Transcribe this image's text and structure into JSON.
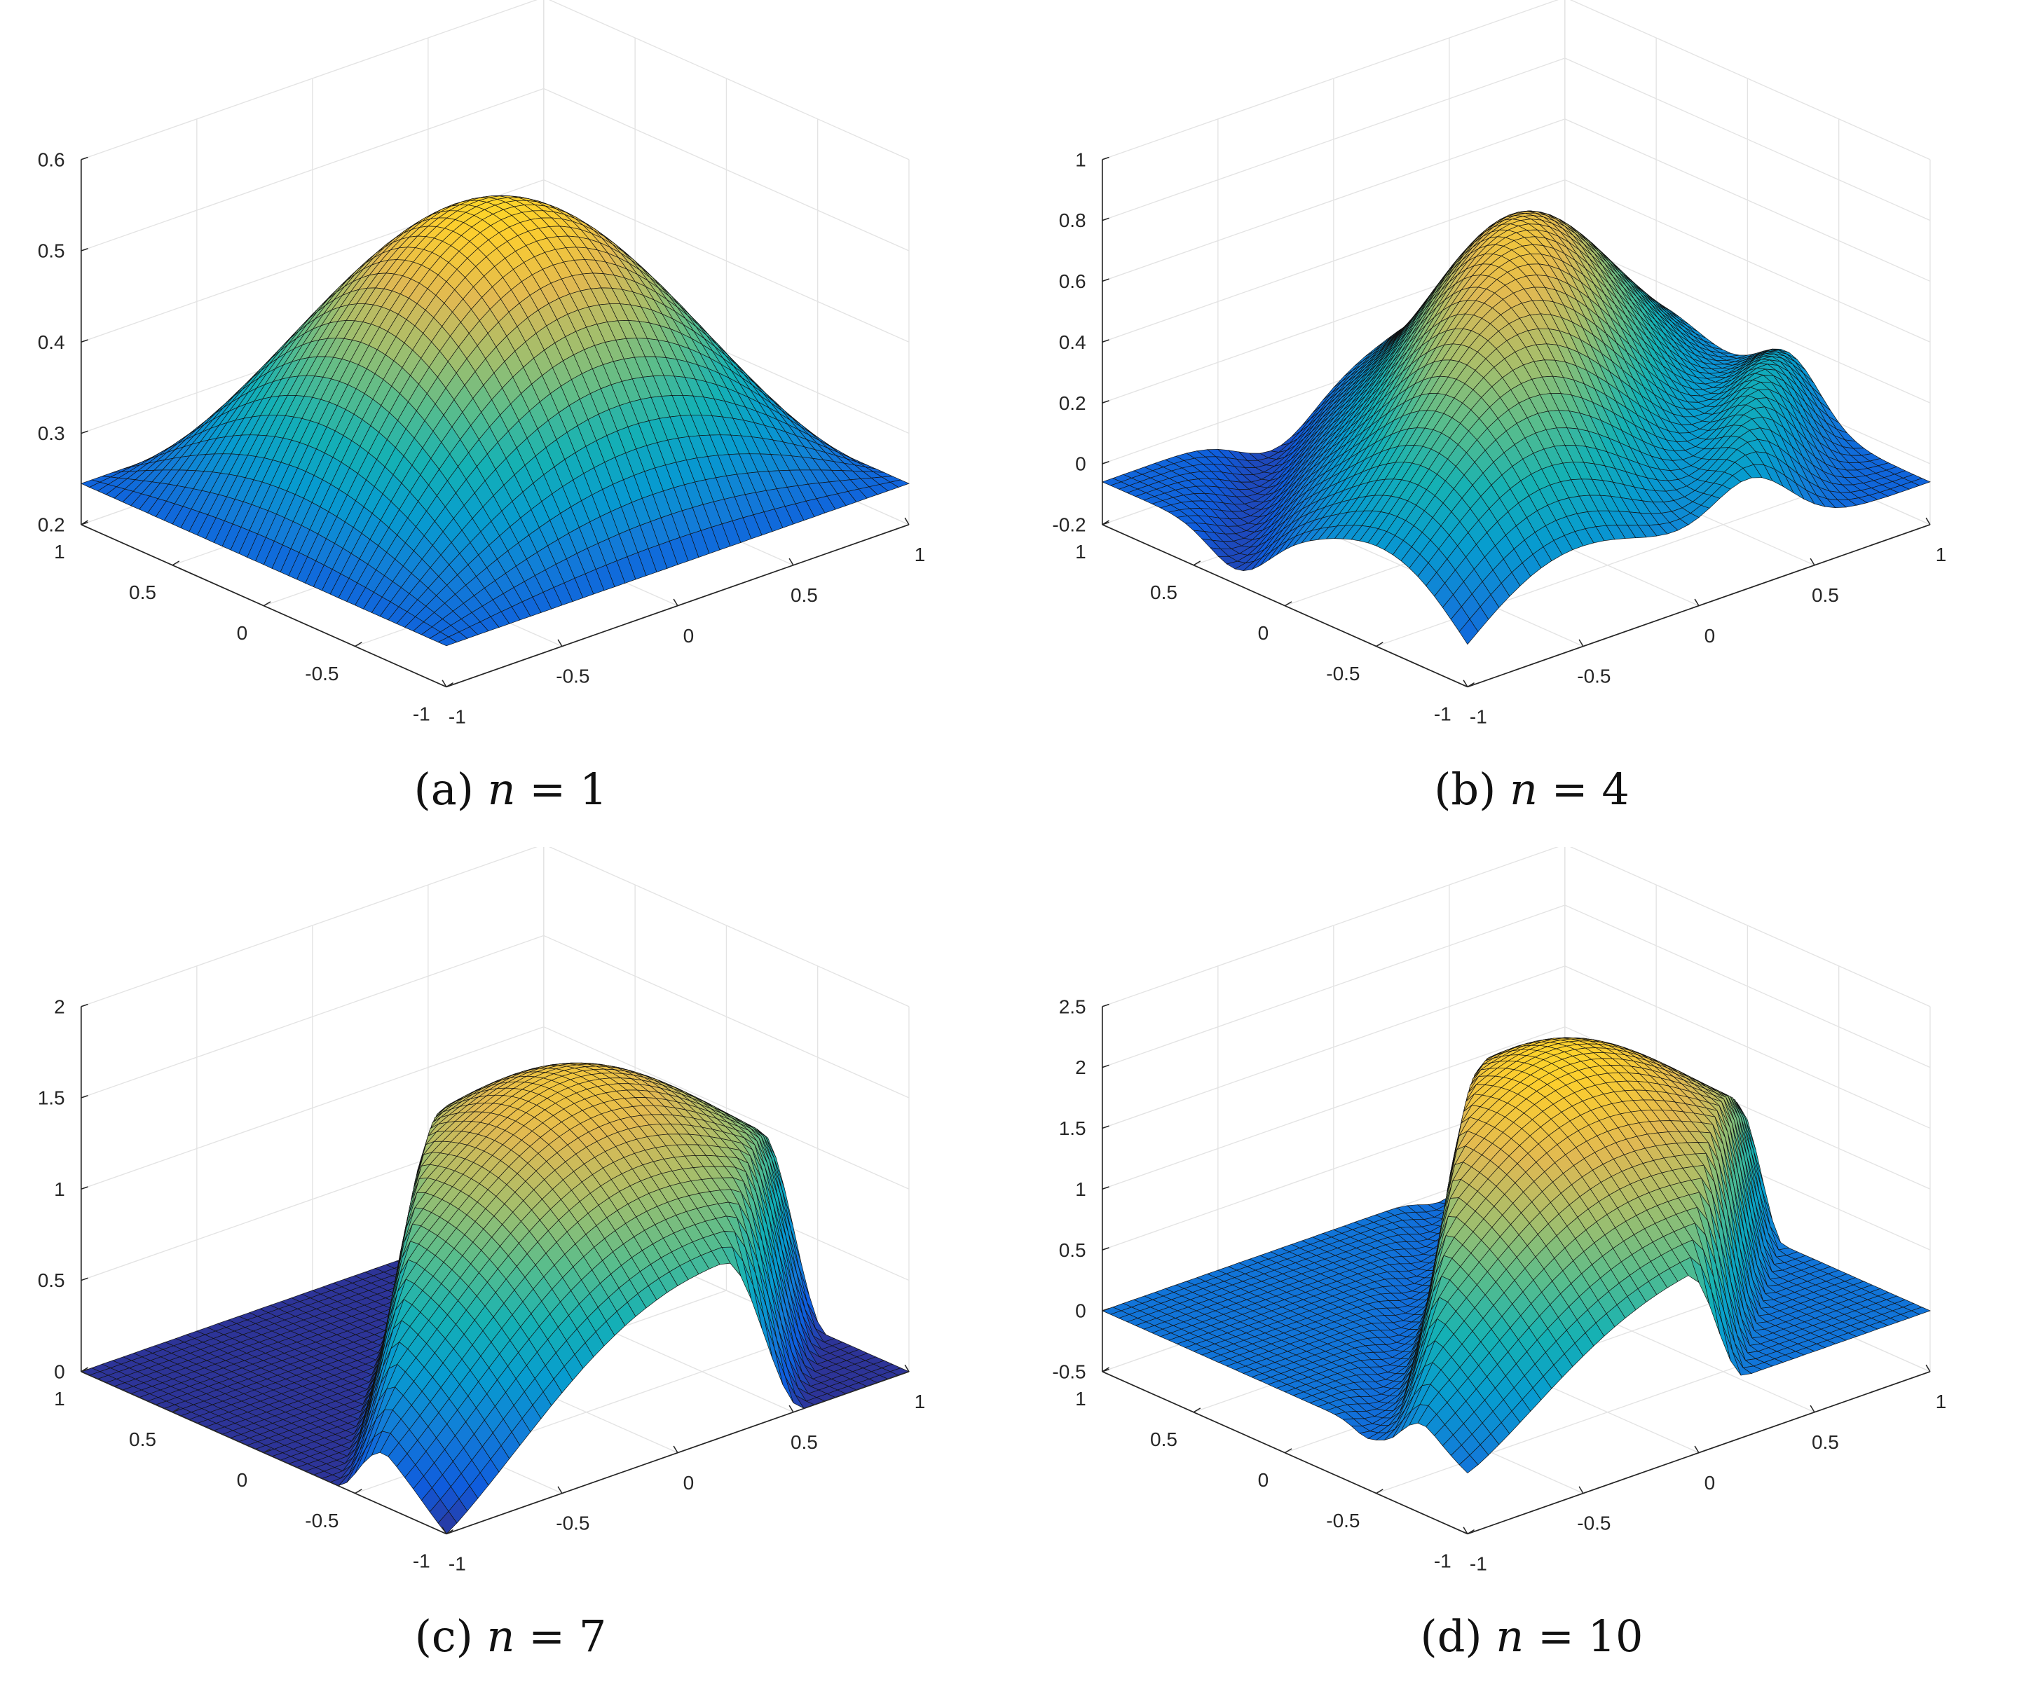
{
  "chart_data": [
    {
      "type": "surface",
      "panel_label": "(a)",
      "caption_var": "n",
      "caption_rest": " = 1",
      "n": 1,
      "xlim": [
        -1,
        1
      ],
      "ylim": [
        -1,
        1
      ],
      "zlim": [
        0.2,
        0.6
      ],
      "xticks": [
        "-1",
        "-0.5",
        "0",
        "0.5",
        "1"
      ],
      "yticks": [
        "-1",
        "-0.5",
        "0",
        "0.5",
        "1"
      ],
      "zticks": [
        "0.2",
        "0.3",
        "0.4",
        "0.5",
        "0.6"
      ],
      "z_tick_values": [
        0.2,
        0.3,
        0.4,
        0.5,
        0.6
      ],
      "peak": 0.55,
      "corner_values": {
        "x-1_y1": 0.24,
        "x1_y-1": 0.27,
        "x-1_y-1": 0.26,
        "x1_y1": 0.25
      },
      "grid": true,
      "colormap": "parula"
    },
    {
      "type": "surface",
      "panel_label": "(b)",
      "caption_var": "n",
      "caption_rest": " = 4",
      "n": 4,
      "xlim": [
        -1,
        1
      ],
      "ylim": [
        -1,
        1
      ],
      "zlim": [
        -0.2,
        1
      ],
      "xticks": [
        "-1",
        "-0.5",
        "0",
        "0.5",
        "1"
      ],
      "yticks": [
        "-1",
        "-0.5",
        "0",
        "0.5",
        "1"
      ],
      "zticks": [
        "-0.2",
        "0",
        "0.2",
        "0.4",
        "0.6",
        "0.8",
        "1"
      ],
      "z_tick_values": [
        -0.2,
        0,
        0.2,
        0.4,
        0.6,
        0.8,
        1
      ],
      "peak": 0.82,
      "min": -0.1,
      "grid": true,
      "colormap": "parula"
    },
    {
      "type": "surface",
      "panel_label": "(c)",
      "caption_var": "n",
      "caption_rest": " = 7",
      "n": 7,
      "xlim": [
        -1,
        1
      ],
      "ylim": [
        -1,
        1
      ],
      "zlim": [
        0,
        2
      ],
      "xticks": [
        "-1",
        "-0.5",
        "0",
        "0.5",
        "1"
      ],
      "yticks": [
        "-1",
        "-0.5",
        "0",
        "0.5",
        "1"
      ],
      "zticks": [
        "0",
        "0.5",
        "1",
        "1.5",
        "2"
      ],
      "z_tick_values": [
        0,
        0.5,
        1,
        1.5,
        2
      ],
      "peak": 1.6,
      "grid": true,
      "colormap": "parula"
    },
    {
      "type": "surface",
      "panel_label": "(d)",
      "caption_var": "n",
      "caption_rest": " = 10",
      "n": 10,
      "xlim": [
        -1,
        1
      ],
      "ylim": [
        -1,
        1
      ],
      "zlim": [
        -0.5,
        2.5
      ],
      "xticks": [
        "-1",
        "-0.5",
        "0",
        "0.5",
        "1"
      ],
      "yticks": [
        "-1",
        "-0.5",
        "0",
        "0.5",
        "1"
      ],
      "zticks": [
        "-0.5",
        "0",
        "0.5",
        "1",
        "1.5",
        "2",
        "2.5"
      ],
      "z_tick_values": [
        -0.5,
        0,
        0.5,
        1,
        1.5,
        2,
        2.5
      ],
      "peak": 2.1,
      "grid": true,
      "colormap": "parula"
    }
  ]
}
